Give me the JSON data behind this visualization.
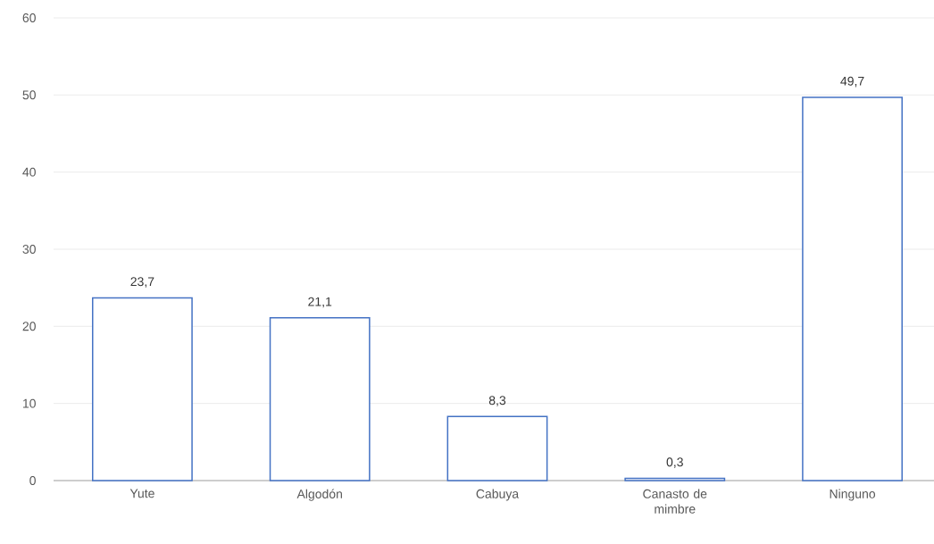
{
  "chart_data": {
    "type": "bar",
    "categories": [
      "Yute",
      "Algodón",
      "Cabuya",
      "Canasto de mimbre",
      "Ninguno"
    ],
    "values": [
      23.7,
      21.1,
      8.3,
      0.3,
      49.7
    ],
    "value_labels": [
      "23,7",
      "21,1",
      "8,3",
      "0,3",
      "49,7"
    ],
    "color": "#4472c4",
    "ylim": [
      0,
      60
    ],
    "yticks": [
      0,
      10,
      20,
      30,
      40,
      50,
      60
    ],
    "grid": "y"
  }
}
